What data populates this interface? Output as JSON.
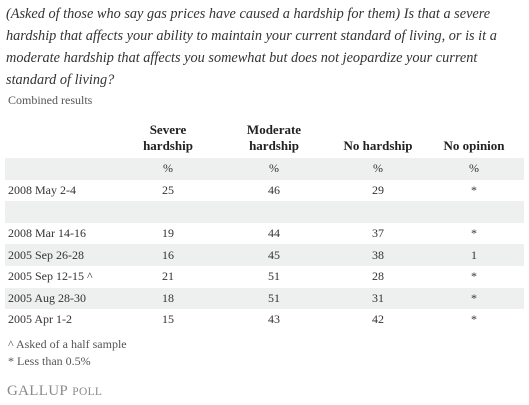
{
  "header": {
    "title": "(Asked of those who say gas prices have caused a hardship for them) Is that a severe hardship that affects your ability to maintain your current standard of living, or is it a moderate hardship that affects you somewhat but does not jeopardize your current standard of living?",
    "subtitle": "Combined results"
  },
  "table": {
    "columns": [
      "Severe hardship",
      "Moderate hardship",
      "No hardship",
      "No opinion"
    ],
    "units": [
      "%",
      "%",
      "%",
      "%"
    ],
    "row_groups": [
      [
        [
          "2008 May 2-4",
          25,
          46,
          29,
          "*"
        ]
      ],
      [
        [
          "2008 Mar 14-16",
          19,
          44,
          37,
          "*"
        ],
        [
          "2005 Sep 26-28",
          16,
          45,
          38,
          1
        ],
        [
          "2005 Sep 12-15 ^",
          21,
          51,
          28,
          "*"
        ],
        [
          "2005 Aug 28-30",
          18,
          51,
          31,
          "*"
        ],
        [
          "2005 Apr 1-2",
          15,
          43,
          42,
          "*"
        ]
      ]
    ]
  },
  "footnotes": [
    "^ Asked of a half sample",
    "* Less than 0.5%"
  ],
  "brand": {
    "name": "GALLUP",
    "product": "POLL"
  }
}
